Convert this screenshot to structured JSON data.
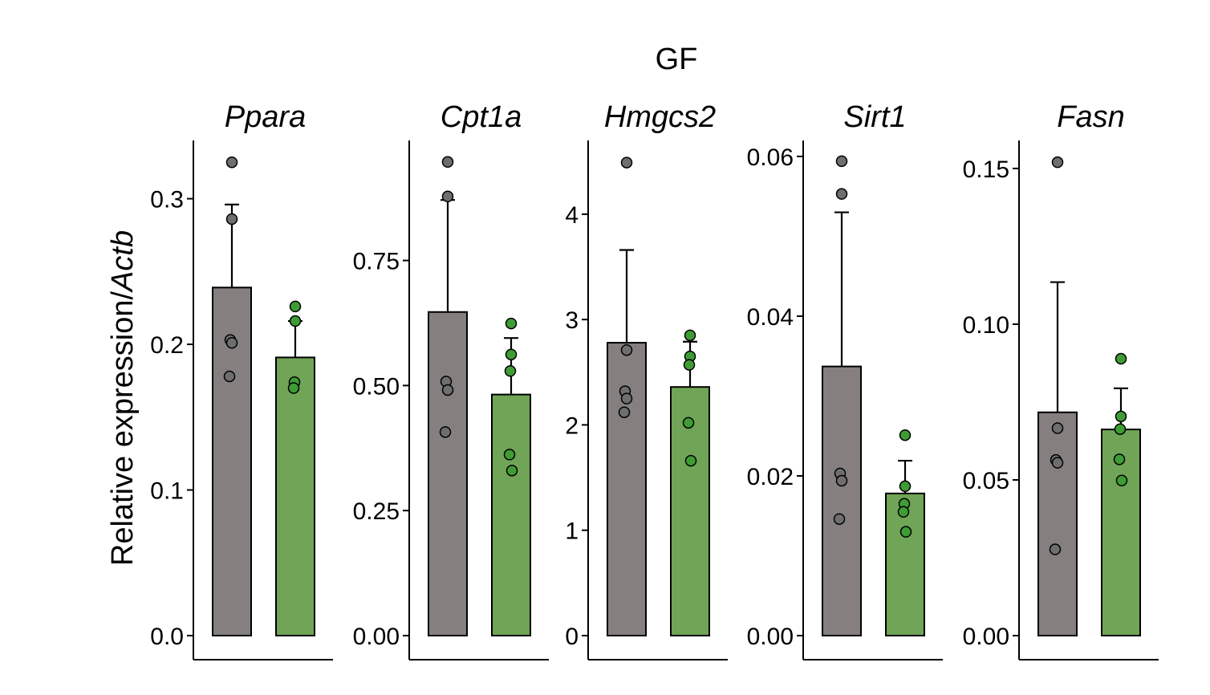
{
  "figure": {
    "title": "GF",
    "ylabel_prefix": "Relative expression/",
    "ylabel_gene": "Actb"
  },
  "colors": {
    "group1": "#857f80",
    "group2": "#70a456",
    "point_group1": "#6e6e6e",
    "point_group2": "#3f9c35",
    "axis": "#000000"
  },
  "chart_data": [
    {
      "type": "bar",
      "title": "Ppara",
      "ylim": [
        0,
        0.34
      ],
      "ticks": [
        0,
        0.1,
        0.2,
        0.3
      ],
      "tick_labels": [
        "0.0",
        "0.1",
        "0.2",
        "0.3"
      ],
      "bars": [
        {
          "mean": 0.239,
          "error": 0.057,
          "points": [
            0.325,
            0.286,
            0.203,
            0.201,
            0.178
          ]
        },
        {
          "mean": 0.191,
          "error": 0.025,
          "points": [
            0.226,
            0.216,
            0.174,
            0.17
          ]
        }
      ]
    },
    {
      "type": "bar",
      "title": "Cpt1a",
      "ylim": [
        0,
        0.99
      ],
      "ticks": [
        0,
        0.25,
        0.5,
        0.75
      ],
      "tick_labels": [
        "0.00",
        "0.25",
        "0.50",
        "0.75"
      ],
      "bars": [
        {
          "mean": 0.647,
          "error": 0.224,
          "points": [
            0.947,
            0.878,
            0.508,
            0.491,
            0.407
          ]
        },
        {
          "mean": 0.482,
          "error": 0.113,
          "points": [
            0.624,
            0.562,
            0.529,
            0.362,
            0.33
          ]
        }
      ]
    },
    {
      "type": "bar",
      "title": "Hmgcs2",
      "ylim": [
        0,
        4.7
      ],
      "ticks": [
        0,
        1,
        2,
        3,
        4
      ],
      "tick_labels": [
        "0",
        "1",
        "2",
        "3",
        "4"
      ],
      "bars": [
        {
          "mean": 2.78,
          "error": 0.88,
          "points": [
            4.49,
            2.71,
            2.32,
            2.25,
            2.12
          ]
        },
        {
          "mean": 2.36,
          "error": 0.43,
          "points": [
            2.85,
            2.65,
            2.57,
            2.02,
            1.66
          ]
        }
      ]
    },
    {
      "type": "bar",
      "title": "Sirt1",
      "ylim": [
        0,
        0.062
      ],
      "ticks": [
        0,
        0.02,
        0.04,
        0.06
      ],
      "tick_labels": [
        "0.00",
        "0.02",
        "0.04",
        "0.06"
      ],
      "bars": [
        {
          "mean": 0.0337,
          "error": 0.0193,
          "points": [
            0.0594,
            0.0553,
            0.0203,
            0.0194,
            0.0146
          ]
        },
        {
          "mean": 0.0178,
          "error": 0.0041,
          "points": [
            0.0251,
            0.0187,
            0.0165,
            0.0155,
            0.013
          ]
        }
      ]
    },
    {
      "type": "bar",
      "title": "Fasn",
      "ylim": [
        0,
        0.159
      ],
      "ticks": [
        0,
        0.05,
        0.1,
        0.15
      ],
      "tick_labels": [
        "0.00",
        "0.05",
        "0.10",
        "0.15"
      ],
      "bars": [
        {
          "mean": 0.0717,
          "error": 0.0418,
          "points": [
            0.152,
            0.0666,
            0.0564,
            0.0555,
            0.0277
          ]
        },
        {
          "mean": 0.0662,
          "error": 0.0132,
          "points": [
            0.0889,
            0.0704,
            0.0663,
            0.0566,
            0.0498
          ]
        }
      ]
    }
  ]
}
